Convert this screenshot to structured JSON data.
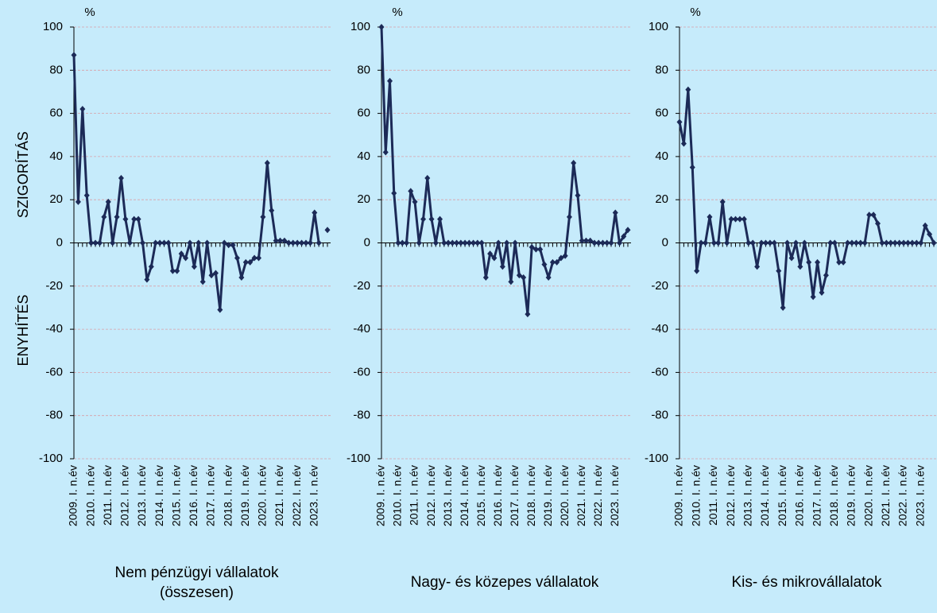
{
  "chart_data": [
    {
      "type": "line",
      "title": "Nem pénzügyi vállalatok (összesen)",
      "unit": "%",
      "y_label_top": "SZIGORÍTÁS",
      "y_label_bottom": "ENYHÍTÉS",
      "categories": [
        "2009. I. n.év",
        null,
        null,
        null,
        "2010. I. n.év",
        null,
        null,
        null,
        "2011. I. n.év",
        null,
        null,
        null,
        "2012. I. n.év",
        null,
        null,
        null,
        "2013. I. n.év",
        null,
        null,
        null,
        "2014. I. n.év",
        null,
        null,
        null,
        "2015. I. n.év",
        null,
        null,
        null,
        "2016. I. n.év",
        null,
        null,
        null,
        "2017. I. n.év",
        null,
        null,
        null,
        "2018. I. n.év",
        null,
        null,
        null,
        "2019. I. n.év",
        null,
        null,
        null,
        "2020. I. n.év",
        null,
        null,
        null,
        "2021. I. n.év",
        null,
        null,
        null,
        "2022. I. n.év",
        null,
        null,
        null,
        "2023. I. n.év",
        null,
        null,
        null
      ],
      "values": [
        87,
        19,
        62,
        22,
        0,
        0,
        0,
        12,
        19,
        0,
        12,
        30,
        11,
        0,
        11,
        11,
        0,
        -17,
        -11,
        0,
        0,
        0,
        0,
        -13,
        -13,
        -5,
        -7,
        0,
        -11,
        0,
        -18,
        0,
        -15,
        -14,
        -31,
        0,
        -1,
        -1,
        -7,
        -16,
        -9,
        -9,
        -7,
        -7,
        12,
        37,
        15,
        1,
        1,
        1,
        0,
        0,
        0,
        0,
        0,
        0,
        14,
        0,
        null,
        6
      ],
      "color": "#1c2a57",
      "ylim": [
        -100,
        100
      ],
      "yticks": [
        -100,
        -80,
        -60,
        -40,
        -20,
        0,
        20,
        40,
        60,
        80,
        100
      ],
      "grid": true
    },
    {
      "type": "line",
      "title": "Nagy- és közepes vállalatok",
      "unit": "%",
      "categories": [
        "2009. I. n.év",
        null,
        null,
        null,
        "2010. I. n.év",
        null,
        null,
        null,
        "2011. I. n.év",
        null,
        null,
        null,
        "2012. I. n.év",
        null,
        null,
        null,
        "2013. I. n.év",
        null,
        null,
        null,
        "2014. I. n.év",
        null,
        null,
        null,
        "2015. I. n.év",
        null,
        null,
        null,
        "2016. I. n.év",
        null,
        null,
        null,
        "2017. I. n.év",
        null,
        null,
        null,
        "2018. I. n.év",
        null,
        null,
        null,
        "2019. I. n.év",
        null,
        null,
        null,
        "2020. I. n.év",
        null,
        null,
        null,
        "2021. I. n.év",
        null,
        null,
        null,
        "2022. I. n.év",
        null,
        null,
        null,
        "2023. I. n.év",
        null,
        null,
        null
      ],
      "values": [
        100,
        42,
        75,
        23,
        0,
        0,
        0,
        24,
        19,
        0,
        11,
        30,
        11,
        0,
        11,
        0,
        0,
        0,
        0,
        0,
        0,
        0,
        0,
        0,
        0,
        -16,
        -5,
        -7,
        0,
        -11,
        0,
        -18,
        0,
        -15,
        -16,
        -33,
        -2,
        -3,
        -3,
        -10,
        -16,
        -9,
        -9,
        -7,
        -6,
        12,
        37,
        22,
        1,
        1,
        1,
        0,
        0,
        0,
        0,
        0,
        14,
        0,
        3,
        6
      ],
      "color": "#1c2a57",
      "ylim": [
        -100,
        100
      ],
      "yticks": [
        -100,
        -80,
        -60,
        -40,
        -20,
        0,
        20,
        40,
        60,
        80,
        100
      ],
      "grid": true
    },
    {
      "type": "line",
      "title": "Kis- és mikrovállalatok",
      "unit": "%",
      "categories": [
        "2009. I. n.év",
        null,
        null,
        null,
        "2010. I. n.év",
        null,
        null,
        null,
        "2011. I. n.év",
        null,
        null,
        null,
        "2012. I. n.év",
        null,
        null,
        null,
        "2013. I. n.év",
        null,
        null,
        null,
        "2014. I. n.év",
        null,
        null,
        null,
        "2015. I. n.év",
        null,
        null,
        null,
        "2016. I. n.év",
        null,
        null,
        null,
        "2017. I. n.év",
        null,
        null,
        null,
        "2018. I. n.év",
        null,
        null,
        null,
        "2019. I. n.év",
        null,
        null,
        null,
        "2020. I. n.év",
        null,
        null,
        null,
        "2021. I. n.év",
        null,
        null,
        null,
        "2022. I. n.év",
        null,
        null,
        null,
        "2023. I. n.év",
        null,
        null,
        null
      ],
      "values": [
        56,
        46,
        71,
        35,
        -13,
        0,
        0,
        12,
        0,
        0,
        19,
        0,
        11,
        11,
        11,
        11,
        0,
        0,
        -11,
        0,
        0,
        0,
        0,
        -13,
        -30,
        0,
        -7,
        0,
        -11,
        0,
        -9,
        -25,
        -9,
        -23,
        -15,
        0,
        0,
        -9,
        -9,
        0,
        0,
        0,
        0,
        0,
        13,
        13,
        9,
        0,
        0,
        0,
        0,
        0,
        0,
        0,
        0,
        0,
        0,
        8,
        4,
        0
      ],
      "color": "#1c2a57",
      "ylim": [
        -100,
        100
      ],
      "yticks": [
        -100,
        -80,
        -60,
        -40,
        -20,
        0,
        20,
        40,
        60,
        80,
        100
      ],
      "grid": true
    }
  ]
}
